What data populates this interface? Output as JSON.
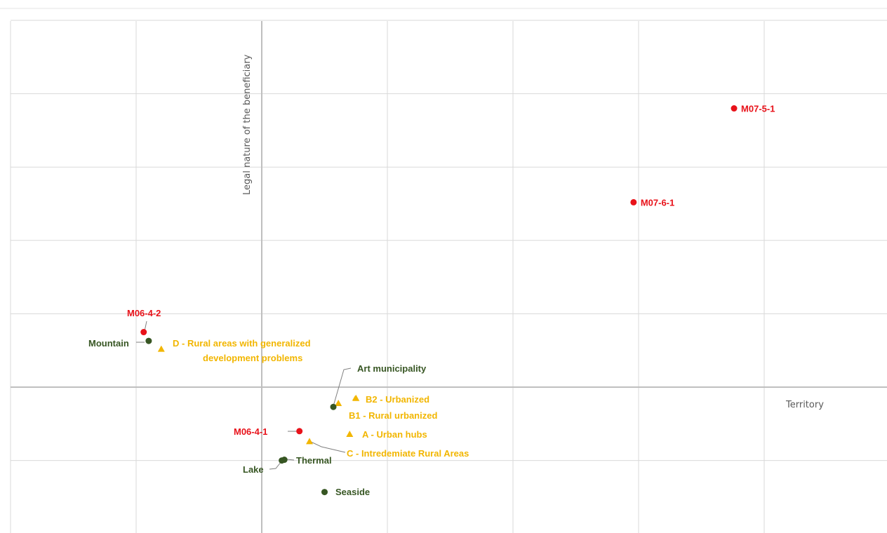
{
  "chart_data": {
    "type": "scatter",
    "xlabel": "Territory",
    "ylabel": "Legal nature of the beneficiary",
    "grid": true,
    "colors": {
      "measures": "#e8121a",
      "areas": "#f2b600",
      "municipalities": "#375623"
    },
    "series": [
      {
        "marker": "circle",
        "color": "#e8121a",
        "points": [
          {
            "label": "M07-5-1",
            "x": 3.76,
            "y": 3.8
          },
          {
            "label": "M07-6-1",
            "x": 2.96,
            "y": 2.52
          },
          {
            "label": "M06-4-2",
            "x": -0.94,
            "y": 0.75
          },
          {
            "label": "M06-4-1",
            "x": 0.3,
            "y": -0.6
          }
        ]
      },
      {
        "marker": "triangle",
        "color": "#f2b600",
        "points": [
          {
            "label": "D - Rural areas with generalized",
            "label2": "development problems",
            "x": -0.8,
            "y": 0.52
          },
          {
            "label": "B2 - Urbanized",
            "x": 0.75,
            "y": -0.15
          },
          {
            "label": "B1 - Rural urbanized",
            "x": 0.61,
            "y": -0.22
          },
          {
            "label": "A - Urban hubs",
            "x": 0.7,
            "y": -0.64
          },
          {
            "label": "C - Intredemiate  Rural Areas",
            "x": 0.38,
            "y": -0.74
          }
        ]
      },
      {
        "marker": "circle",
        "color": "#375623",
        "points": [
          {
            "label": "Mountain",
            "x": -0.9,
            "y": 0.63
          },
          {
            "label": "Art municipality",
            "x": 0.57,
            "y": -0.27
          },
          {
            "label": "Thermal",
            "x": 0.18,
            "y": -0.99
          },
          {
            "label": "Lake",
            "x": 0.16,
            "y": -1.0
          },
          {
            "label": "Seaside",
            "x": 0.5,
            "y": -1.43
          }
        ]
      }
    ]
  }
}
